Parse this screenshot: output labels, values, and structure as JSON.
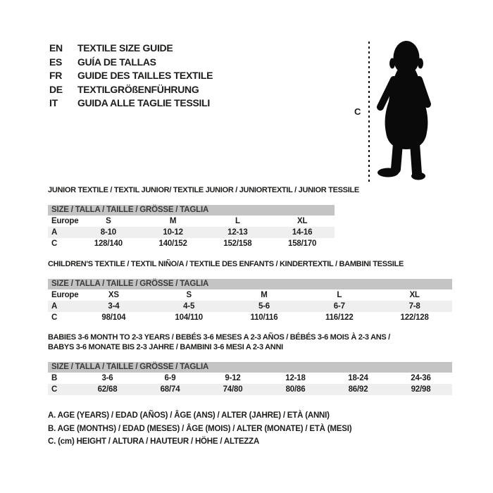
{
  "colors": {
    "header_band": "#c4c4c4",
    "row_shade": "#efefef",
    "text": "#1d1d1b",
    "silhouette": "#0a0a0a"
  },
  "languages": {
    "rows": [
      {
        "code": "EN",
        "label": "TEXTILE SIZE GUIDE"
      },
      {
        "code": "ES",
        "label": "GUÍA DE TALLAS"
      },
      {
        "code": "FR",
        "label": "GUIDE DES TAILLES TEXTILE"
      },
      {
        "code": "DE",
        "label": "TEXTILGRÖßENFÜHRUNG"
      },
      {
        "code": "IT",
        "label": "GUIDA ALLE TAGLIE TESSILI"
      }
    ]
  },
  "figure": {
    "measure_label": "C"
  },
  "tables": [
    {
      "title_lines": [
        "JUNIOR TEXTILE / TEXTIL JUNIOR/ TEXTILE JUNIOR / JUNIORTEXTIL / JUNIOR TESSILE"
      ],
      "header": "SIZE / TALLA / TAILLE / GRÖSSE / TAGLIA",
      "rows": [
        {
          "label": "Europe",
          "shaded": false,
          "values": [
            "S",
            "M",
            "L",
            "XL"
          ]
        },
        {
          "label": "A",
          "shaded": true,
          "values": [
            "8-10",
            "10-12",
            "12-13",
            "14-16"
          ]
        },
        {
          "label": "C",
          "shaded": false,
          "values": [
            "128/140",
            "140/152",
            "152/158",
            "158/170"
          ]
        }
      ]
    },
    {
      "title_lines": [
        "CHILDREN'S TEXTILE / TEXTIL NIÑO/A / TEXTILE DES ENFANTS / KINDERTEXTIL / BAMBINI TESSILE"
      ],
      "header": "SIZE / TALLA / TAILLE / GRÖSSE / TAGLIA",
      "rows": [
        {
          "label": "Europe",
          "shaded": false,
          "values": [
            "XS",
            "S",
            "M",
            "L",
            "XL"
          ]
        },
        {
          "label": "A",
          "shaded": true,
          "values": [
            "3-4",
            "4-5",
            "5-6",
            "6-7",
            "7-8"
          ]
        },
        {
          "label": "C",
          "shaded": false,
          "values": [
            "98/104",
            "104/110",
            "110/116",
            "116/122",
            "122/128"
          ]
        }
      ]
    },
    {
      "title_lines": [
        "BABIES 3-6 MONTH TO 2-3 YEARS / BEBÉS 3-6 MESES A 2-3 AÑOS / BÉBÉS 3-6 MOIS À 2-3 ANS /",
        "BABYS 3-6 MONATE BIS 2-3 JAHRE / BAMBINI 3-6 MESI A 2-3 ANNI"
      ],
      "header": "SIZE / TALLA / TAILLE / GRÖSSE / TAGLIA",
      "rows": [
        {
          "label": "B",
          "shaded": false,
          "values": [
            "3-6",
            "6-9",
            "9-12",
            "12-18",
            "18-24",
            "24-36"
          ]
        },
        {
          "label": "C",
          "shaded": true,
          "values": [
            "62/68",
            "68/74",
            "74/80",
            "80/86",
            "86/92",
            "92/98"
          ]
        }
      ]
    }
  ],
  "legend": {
    "lines": [
      "A. AGE (YEARS) / EDAD (AÑOS) / ÂGE (ANS) / ALTER (JAHRE) / ETÀ (ANNI)",
      "B. AGE (MONTHS) / EDAD (MESES) / ÂGE (MOIS) / ALTER (MONATE) / ETÀ (MESI)",
      "C. (cm) HEIGHT / ALTURA / HAUTEUR / HÖHE / ALTEZZA"
    ]
  }
}
